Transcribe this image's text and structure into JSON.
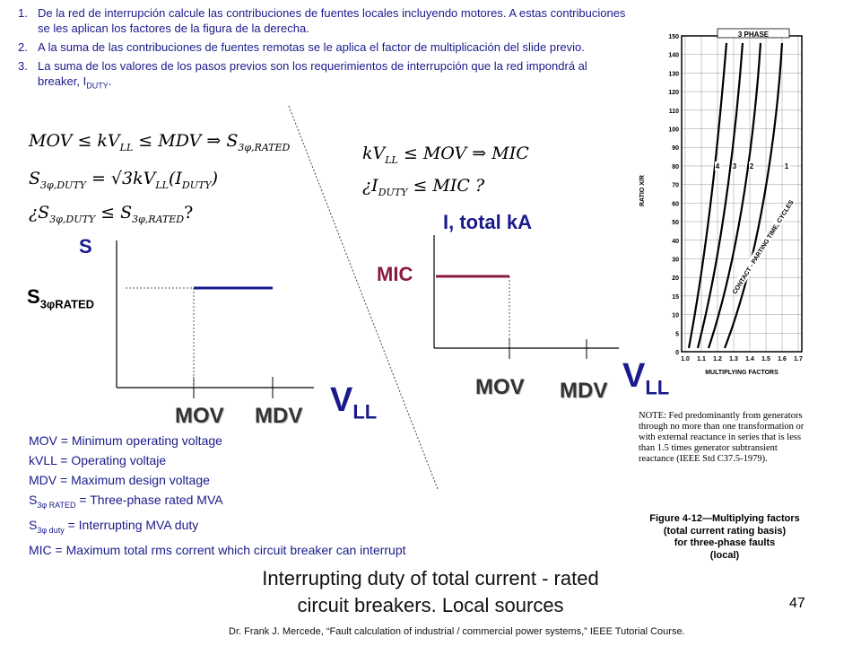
{
  "steps": [
    {
      "num": "1.",
      "text": "De la red de interrupción calcule las contribuciones de fuentes locales incluyendo motores. A estas contribuciones se les aplican los factores de la figura de la derecha."
    },
    {
      "num": "2.",
      "text": "A la suma de las contribuciones de fuentes remotas se le aplica el factor de multiplicación del slide previo."
    },
    {
      "num": "3.",
      "text": "La suma de los valores de los pasos previos son los requerimientos de interrupción que la red impondrá al breaker, I",
      "sub": "DUTY",
      "tail": "."
    }
  ],
  "left_equations": {
    "eq1": "MOV ≤ kV",
    "eq1_sub": "LL",
    "eq1_rest": " ≤ MDV ⇒ S",
    "eq1_sub2": "3φ,RATED",
    "eq2_a": "S",
    "eq2_sub": "3φ,DUTY",
    "eq2_b": " = √3kV",
    "eq2_sub2": "LL",
    "eq2_c": "(I",
    "eq2_sub3": "DUTY",
    "eq2_d": ")",
    "eq3_a": "¿S",
    "eq3_sub": "3φ,DUTY",
    "eq3_b": " ≤ S",
    "eq3_sub2": "3φ,RATED",
    "eq3_q": "?"
  },
  "right_equations": {
    "eq1_a": "kV",
    "eq1_sub": "LL",
    "eq1_b": " ≤ MOV ⇒ MIC",
    "eq2_a": "¿I",
    "eq2_sub": "DUTY",
    "eq2_b": " ≤ MIC ?"
  },
  "left_graph": {
    "y_label": "S",
    "rated_label": "S",
    "rated_sub": "3φRATED",
    "x_tick_1": "MOV",
    "x_tick_2": "MDV",
    "x_axis_label": "V",
    "x_axis_sub": "LL",
    "line_color": "#1a1a8c"
  },
  "right_graph": {
    "y_label": "I, total kA",
    "level_label": "MIC",
    "x_tick_1": "MOV",
    "x_tick_2": "MDV",
    "x_axis_label": "V",
    "x_axis_sub": "LL",
    "line_color": "#8b1a3c"
  },
  "legend": [
    {
      "a": "MOV = Minimum operating voltage"
    },
    {
      "a": "kVLL = Operating voltaje"
    },
    {
      "a": "MDV = Maximum design voltage"
    },
    {
      "a": "S",
      "sub": "3φ RATED",
      "b": " = Three-phase rated MVA"
    },
    {
      "a": "S",
      "sub": "3φ duty",
      "b": " = Interrupting MVA duty"
    },
    {
      "a": "MIC = Maximum total rms corrent which circuit breaker can interrupt"
    }
  ],
  "figure": {
    "header": "3 PHASE",
    "y_axis_title": "RATIO X/R",
    "x_axis_title": "MULTIPLYING FACTORS",
    "y_ticks": [
      "150",
      "140",
      "130",
      "120",
      "110",
      "100",
      "90",
      "80",
      "70",
      "60",
      "50",
      "40",
      "30",
      "20",
      "15",
      "10",
      "5",
      "0"
    ],
    "x_ticks": [
      "1.0",
      "1.1",
      "1.2",
      "1.3",
      "1.4",
      "1.5",
      "1.6",
      "1.7"
    ],
    "curve_labels": [
      "4",
      "3",
      "2",
      "1"
    ],
    "curve_annotation": "CONTACT - PARTING TIME, CYCLES",
    "note": "NOTE: Fed predominantly from generators through no more than one transformation or with external reactance in series that is less than 1.5 times generator subtransient reactance (IEEE Std C37.5-1979).",
    "caption_line1": "Figure 4-12—Multiplying factors",
    "caption_line2": "(total current rating basis)",
    "caption_line3": "for three-phase faults",
    "caption_line4": "(local)"
  },
  "caption_line1": "Interrupting duty of total current - rated",
  "caption_line2": "circuit breakers. Local sources",
  "page_number": "47",
  "credit": "Dr. Frank J. Mercede, “Fault calculation of industrial / commercial power systems,” IEEE Tutorial Course."
}
